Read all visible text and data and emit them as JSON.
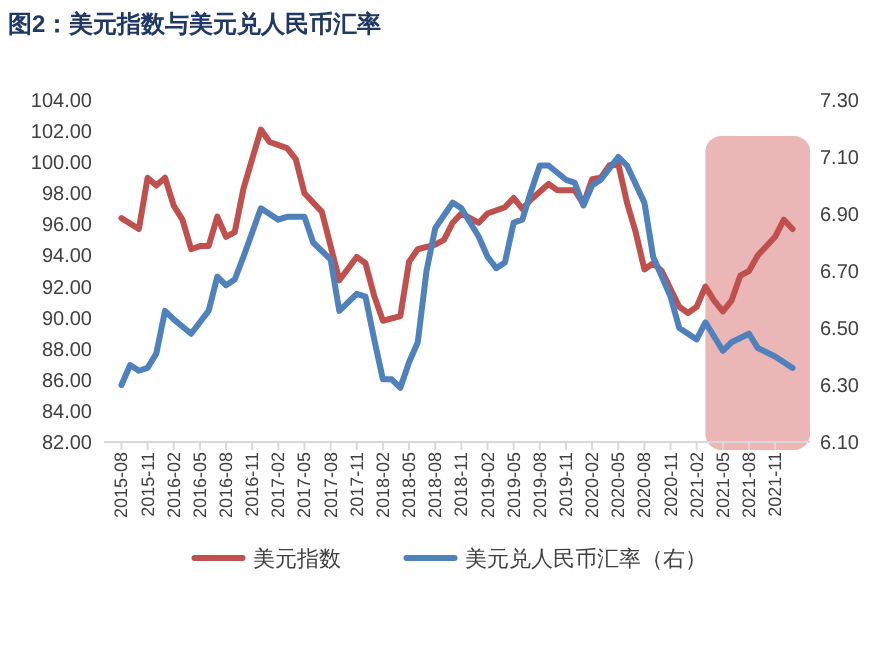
{
  "chart_data": {
    "type": "line",
    "title": "图2：美元指数与美元兑人民币汇率",
    "xlim": [
      "2015-06",
      "2022-03"
    ],
    "xticks": [
      "2015-08",
      "2015-11",
      "2016-02",
      "2016-05",
      "2016-08",
      "2016-11",
      "2017-02",
      "2017-05",
      "2017-08",
      "2017-11",
      "2018-02",
      "2018-05",
      "2018-08",
      "2018-11",
      "2019-02",
      "2019-05",
      "2019-08",
      "2019-11",
      "2020-02",
      "2020-05",
      "2020-08",
      "2020-11",
      "2021-02",
      "2021-05",
      "2021-08",
      "2021-11"
    ],
    "ylim": [
      82,
      104
    ],
    "yticks": [
      {
        "value": 82,
        "label": "82.00"
      },
      {
        "value": 84,
        "label": "84.00"
      },
      {
        "value": 86,
        "label": "86.00"
      },
      {
        "value": 88,
        "label": "88.00"
      },
      {
        "value": 90,
        "label": "90.00"
      },
      {
        "value": 92,
        "label": "92.00"
      },
      {
        "value": 94,
        "label": "94.00"
      },
      {
        "value": 96,
        "label": "96.00"
      },
      {
        "value": 98,
        "label": "98.00"
      },
      {
        "value": 100,
        "label": "100.00"
      },
      {
        "value": 102,
        "label": "102.00"
      },
      {
        "value": 104,
        "label": "104.00"
      }
    ],
    "y2lim": [
      6.1,
      7.3
    ],
    "y2ticks": [
      {
        "value": 6.1,
        "label": "6.10"
      },
      {
        "value": 6.3,
        "label": "6.30"
      },
      {
        "value": 6.5,
        "label": "6.50"
      },
      {
        "value": 6.7,
        "label": "6.70"
      },
      {
        "value": 6.9,
        "label": "6.90"
      },
      {
        "value": 7.1,
        "label": "7.10"
      },
      {
        "value": 7.3,
        "label": "7.30"
      }
    ],
    "bands": [
      {
        "axis": "x",
        "from": "2021-03",
        "to": "2022-03",
        "color": "#e8a9a9"
      }
    ],
    "legend": "bottom",
    "series": [
      {
        "name": "美元指数",
        "color": "#c0504d",
        "x": [
          "2015-08",
          "2015-10",
          "2015-11",
          "2015-12",
          "2016-01",
          "2016-02",
          "2016-03",
          "2016-04",
          "2016-05",
          "2016-06",
          "2016-07",
          "2016-08",
          "2016-09",
          "2016-10",
          "2016-12",
          "2017-01",
          "2017-03",
          "2017-04",
          "2017-05",
          "2017-07",
          "2017-09",
          "2017-11",
          "2017-12",
          "2018-01",
          "2018-02",
          "2018-04",
          "2018-05",
          "2018-06",
          "2018-08",
          "2018-09",
          "2018-10",
          "2018-11",
          "2018-12",
          "2019-01",
          "2019-02",
          "2019-04",
          "2019-05",
          "2019-06",
          "2019-07",
          "2019-09",
          "2019-10",
          "2019-12",
          "2020-01",
          "2020-02",
          "2020-03",
          "2020-04",
          "2020-05",
          "2020-06",
          "2020-07",
          "2020-08",
          "2020-09",
          "2020-10",
          "2020-12",
          "2021-01",
          "2021-02",
          "2021-03",
          "2021-04",
          "2021-05",
          "2021-06",
          "2021-07",
          "2021-08",
          "2021-09",
          "2021-11",
          "2021-12",
          "2022-01"
        ],
        "values": [
          96.4,
          95.7,
          99.0,
          98.5,
          99.0,
          97.2,
          96.3,
          94.4,
          94.6,
          94.6,
          96.5,
          95.2,
          95.5,
          98.3,
          102.1,
          101.3,
          100.9,
          100.2,
          98.0,
          96.8,
          92.4,
          93.9,
          93.5,
          91.4,
          89.8,
          90.1,
          93.6,
          94.4,
          94.7,
          95.0,
          96.1,
          96.7,
          96.4,
          96.1,
          96.7,
          97.1,
          97.7,
          97.0,
          97.6,
          98.6,
          98.2,
          98.2,
          97.3,
          98.9,
          99.0,
          99.8,
          99.9,
          97.4,
          95.5,
          93.1,
          93.5,
          93.0,
          90.7,
          90.3,
          90.7,
          92.0,
          91.1,
          90.4,
          91.1,
          92.7,
          93.0,
          94.0,
          95.2,
          96.3,
          95.7
        ]
      },
      {
        "name": "美元兑人民币汇率（右）",
        "color": "#4f81bd",
        "axis": "y2",
        "x": [
          "2015-08",
          "2015-09",
          "2015-10",
          "2015-11",
          "2015-12",
          "2016-01",
          "2016-02",
          "2016-04",
          "2016-06",
          "2016-07",
          "2016-08",
          "2016-09",
          "2016-10",
          "2016-12",
          "2017-02",
          "2017-03",
          "2017-05",
          "2017-06",
          "2017-08",
          "2017-09",
          "2017-11",
          "2017-12",
          "2018-01",
          "2018-02",
          "2018-03",
          "2018-04",
          "2018-05",
          "2018-06",
          "2018-07",
          "2018-08",
          "2018-10",
          "2018-11",
          "2019-01",
          "2019-02",
          "2019-03",
          "2019-04",
          "2019-05",
          "2019-06",
          "2019-07",
          "2019-08",
          "2019-09",
          "2019-11",
          "2019-12",
          "2020-01",
          "2020-02",
          "2020-03",
          "2020-04",
          "2020-05",
          "2020-06",
          "2020-08",
          "2020-09",
          "2020-11",
          "2020-12",
          "2021-02",
          "2021-03",
          "2021-05",
          "2021-06",
          "2021-08",
          "2021-09",
          "2021-11",
          "2022-01"
        ],
        "values": [
          6.3,
          6.37,
          6.35,
          6.36,
          6.41,
          6.56,
          6.53,
          6.48,
          6.56,
          6.68,
          6.65,
          6.67,
          6.75,
          6.92,
          6.88,
          6.89,
          6.89,
          6.8,
          6.74,
          6.56,
          6.62,
          6.61,
          6.46,
          6.32,
          6.32,
          6.29,
          6.38,
          6.45,
          6.7,
          6.85,
          6.94,
          6.92,
          6.82,
          6.75,
          6.71,
          6.73,
          6.87,
          6.88,
          6.98,
          7.07,
          7.07,
          7.02,
          7.01,
          6.93,
          7.0,
          7.02,
          7.06,
          7.1,
          7.07,
          6.94,
          6.75,
          6.61,
          6.5,
          6.46,
          6.52,
          6.42,
          6.45,
          6.48,
          6.43,
          6.4,
          6.36
        ]
      }
    ]
  }
}
